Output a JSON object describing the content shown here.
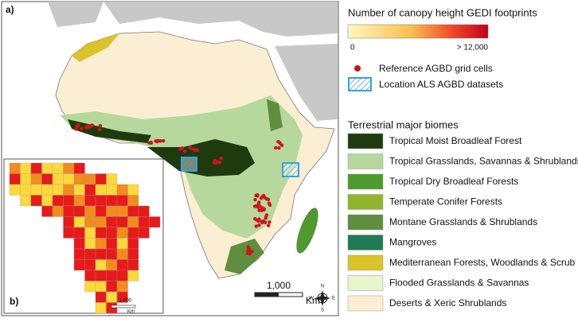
{
  "panel_a_label": "a)",
  "panel_b_label": "b)",
  "footprint_legend": {
    "title": "Number of canopy height GEDI footprints",
    "min_label": "0",
    "max_label": "> 12,000"
  },
  "symbols": [
    {
      "label": "Reference AGBD grid cells"
    },
    {
      "label": "Location ALS AGBD datasets"
    }
  ],
  "biomes": {
    "title": "Terrestrial major biomes",
    "items": [
      {
        "label": "Tropical Moist Broadleaf Forest",
        "color": "#203a10"
      },
      {
        "label": "Tropical Grasslands, Savannas & Shrublands",
        "color": "#b6d89c"
      },
      {
        "label": "Tropical Dry Broadleaf Forests",
        "color": "#4e9a2c"
      },
      {
        "label": "Temperate Conifer Forests",
        "color": "#8fb52a"
      },
      {
        "label": "Montane Grasslands & Shrublands",
        "color": "#5f8e3e"
      },
      {
        "label": "Mangroves",
        "color": "#1f7a56"
      },
      {
        "label": "Mediterranean Forests, Woodlands & Scrub",
        "color": "#d9c42a"
      },
      {
        "label": "Flooded Grasslands & Savannas",
        "color": "#e6f6cb"
      },
      {
        "label": "Deserts & Xeric Shrublands",
        "color": "#fbeed2"
      }
    ]
  },
  "scale_bar": {
    "value": "1,000",
    "unit": "Km"
  },
  "inset_scale_bar": {
    "value": "1,000",
    "unit": "Km"
  },
  "compass": [
    "N",
    "E",
    "S",
    "W"
  ]
}
